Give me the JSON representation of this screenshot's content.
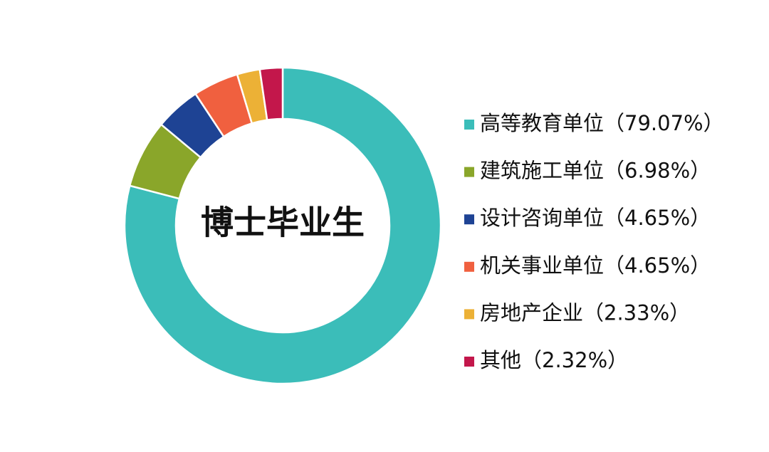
{
  "chart_data": {
    "type": "donut",
    "title": "博士毕业生",
    "categories": [
      "高等教育单位",
      "建筑施工单位",
      "设计咨询单位",
      "机关事业单位",
      "房地产企业",
      "其他"
    ],
    "values": [
      79.07,
      6.98,
      4.65,
      4.65,
      2.33,
      2.32
    ],
    "value_labels": [
      "（79.07%）",
      "（6.98%）",
      "（4.65%）",
      "（4.65%）",
      "（2.33%）",
      "（2.32%）"
    ],
    "colors": [
      "#3bbdb9",
      "#8aa62a",
      "#1e4394",
      "#f0603f",
      "#ecb136",
      "#c3174b"
    ],
    "legend": "right"
  }
}
